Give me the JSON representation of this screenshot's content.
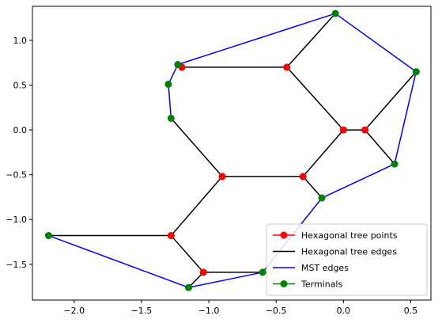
{
  "chart_data": {
    "type": "scatter",
    "title": "",
    "xlabel": "",
    "ylabel": "",
    "xlim": [
      -2.31,
      0.65
    ],
    "ylim": [
      -1.9,
      1.38
    ],
    "xticks": [
      -2.0,
      -1.5,
      -1.0,
      -0.5,
      0.0,
      0.5
    ],
    "xtick_labels": [
      "−2.0",
      "−1.5",
      "−1.0",
      "−0.5",
      "0.0",
      "0.5"
    ],
    "yticks": [
      -1.5,
      -1.0,
      -0.5,
      0.0,
      0.5,
      1.0
    ],
    "ytick_labels": [
      "−1.5",
      "−1.0",
      "−0.5",
      "0.0",
      "0.5",
      "1.0"
    ],
    "grid": false,
    "legend_position": "lower right",
    "colors": {
      "tree_points": "#ff0000",
      "tree_edges": "#000000",
      "mst_edges": "#0000ff",
      "terminals": "#008000"
    },
    "legend": [
      {
        "label": "Hexagonal tree points",
        "kind": "line-marker",
        "color": "#ff0000"
      },
      {
        "label": "Hexagonal tree edges",
        "kind": "line",
        "color": "#000000"
      },
      {
        "label": "MST edges",
        "kind": "line",
        "color": "#0000ff"
      },
      {
        "label": "Terminals",
        "kind": "line-marker",
        "color": "#008000"
      }
    ],
    "terminals": [
      [
        -0.06,
        1.3
      ],
      [
        0.54,
        0.65
      ],
      [
        -1.23,
        0.73
      ],
      [
        -1.3,
        0.51
      ],
      [
        -1.28,
        0.13
      ],
      [
        0.38,
        -0.38
      ],
      [
        -0.16,
        -0.76
      ],
      [
        -2.19,
        -1.18
      ],
      [
        -1.15,
        -1.76
      ],
      [
        -0.6,
        -1.59
      ]
    ],
    "tree_points": [
      [
        -1.2,
        0.7
      ],
      [
        -0.42,
        0.7
      ],
      [
        0.0,
        0.0
      ],
      [
        0.16,
        0.0
      ],
      [
        -0.9,
        -0.52
      ],
      [
        -0.3,
        -0.52
      ],
      [
        -1.28,
        -1.18
      ],
      [
        -1.04,
        -1.59
      ]
    ],
    "tree_edges": [
      [
        [
          -1.23,
          0.73
        ],
        [
          -1.2,
          0.7
        ]
      ],
      [
        [
          -1.2,
          0.7
        ],
        [
          -0.42,
          0.7
        ]
      ],
      [
        [
          -0.42,
          0.7
        ],
        [
          -0.06,
          1.3
        ]
      ],
      [
        [
          -0.42,
          0.7
        ],
        [
          0.0,
          0.0
        ]
      ],
      [
        [
          0.0,
          0.0
        ],
        [
          0.16,
          0.0
        ]
      ],
      [
        [
          0.16,
          0.0
        ],
        [
          0.54,
          0.65
        ]
      ],
      [
        [
          0.16,
          0.0
        ],
        [
          0.38,
          -0.38
        ]
      ],
      [
        [
          0.0,
          0.0
        ],
        [
          -0.3,
          -0.52
        ]
      ],
      [
        [
          -0.3,
          -0.52
        ],
        [
          -0.16,
          -0.76
        ]
      ],
      [
        [
          -0.3,
          -0.52
        ],
        [
          -0.9,
          -0.52
        ]
      ],
      [
        [
          -0.9,
          -0.52
        ],
        [
          -1.28,
          0.13
        ]
      ],
      [
        [
          -0.9,
          -0.52
        ],
        [
          -1.28,
          -1.18
        ]
      ],
      [
        [
          -1.28,
          -1.18
        ],
        [
          -2.19,
          -1.18
        ]
      ],
      [
        [
          -1.28,
          -1.18
        ],
        [
          -1.04,
          -1.59
        ]
      ],
      [
        [
          -1.04,
          -1.59
        ],
        [
          -1.15,
          -1.76
        ]
      ],
      [
        [
          -1.04,
          -1.59
        ],
        [
          -0.6,
          -1.59
        ]
      ]
    ],
    "mst_edges": [
      [
        [
          -0.06,
          1.3
        ],
        [
          -1.23,
          0.73
        ]
      ],
      [
        [
          -0.06,
          1.3
        ],
        [
          0.54,
          0.65
        ]
      ],
      [
        [
          0.54,
          0.65
        ],
        [
          0.38,
          -0.38
        ]
      ],
      [
        [
          0.38,
          -0.38
        ],
        [
          -0.16,
          -0.76
        ]
      ],
      [
        [
          -0.16,
          -0.76
        ],
        [
          -0.6,
          -1.59
        ]
      ],
      [
        [
          -0.6,
          -1.59
        ],
        [
          -1.15,
          -1.76
        ]
      ],
      [
        [
          -1.15,
          -1.76
        ],
        [
          -2.19,
          -1.18
        ]
      ],
      [
        [
          -1.23,
          0.73
        ],
        [
          -1.3,
          0.51
        ]
      ],
      [
        [
          -1.3,
          0.51
        ],
        [
          -1.28,
          0.13
        ]
      ]
    ]
  }
}
